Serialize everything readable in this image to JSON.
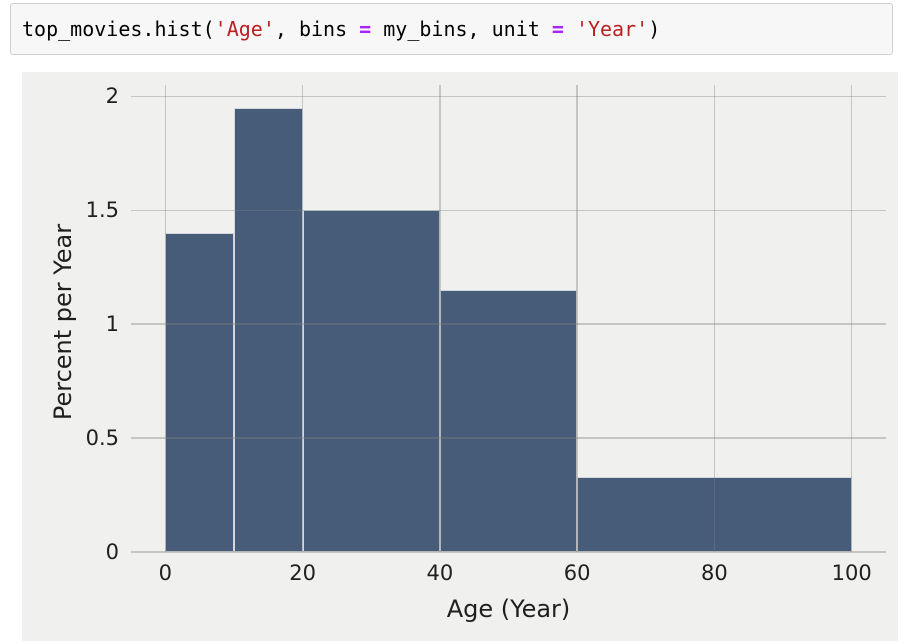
{
  "code_cell": {
    "tokens": [
      {
        "text": "top_movies.hist(",
        "type": "plain"
      },
      {
        "text": "'Age'",
        "type": "string"
      },
      {
        "text": ", bins ",
        "type": "plain"
      },
      {
        "text": "=",
        "type": "operator"
      },
      {
        "text": " my_bins, unit ",
        "type": "plain"
      },
      {
        "text": "=",
        "type": "operator"
      },
      {
        "text": " ",
        "type": "plain"
      },
      {
        "text": "'Year'",
        "type": "string"
      },
      {
        "text": ")",
        "type": "plain"
      }
    ]
  },
  "chart_data": {
    "type": "bar",
    "subtype": "histogram",
    "title": "",
    "xlabel": "Age (Year)",
    "ylabel": "Percent per Year",
    "bin_edges": [
      0,
      10,
      20,
      40,
      60,
      100
    ],
    "bin_heights_percent_per_year": [
      1.4,
      1.95,
      1.5,
      1.15,
      0.33
    ],
    "xticks": [
      0,
      20,
      40,
      60,
      80,
      100
    ],
    "xtick_labels": [
      "0",
      "20",
      "40",
      "60",
      "80",
      "100"
    ],
    "yticks": [
      0,
      0.5,
      1,
      1.5,
      2
    ],
    "ytick_labels": [
      "0",
      "0.5",
      "1",
      "1.5",
      "2"
    ],
    "xlim": [
      -5,
      105
    ],
    "ylim": [
      0,
      2.05
    ],
    "grid": true,
    "legend": false,
    "colors": {
      "bar_fill": "#475c78",
      "bar_edge": "#d4d8de",
      "figure_background": "#f0f0ee",
      "grid_line": "rgba(125,125,125,0.38)",
      "tick_label": "#1f1f1f",
      "code_string": "#ba2121",
      "code_operator": "#aa22ff"
    }
  }
}
